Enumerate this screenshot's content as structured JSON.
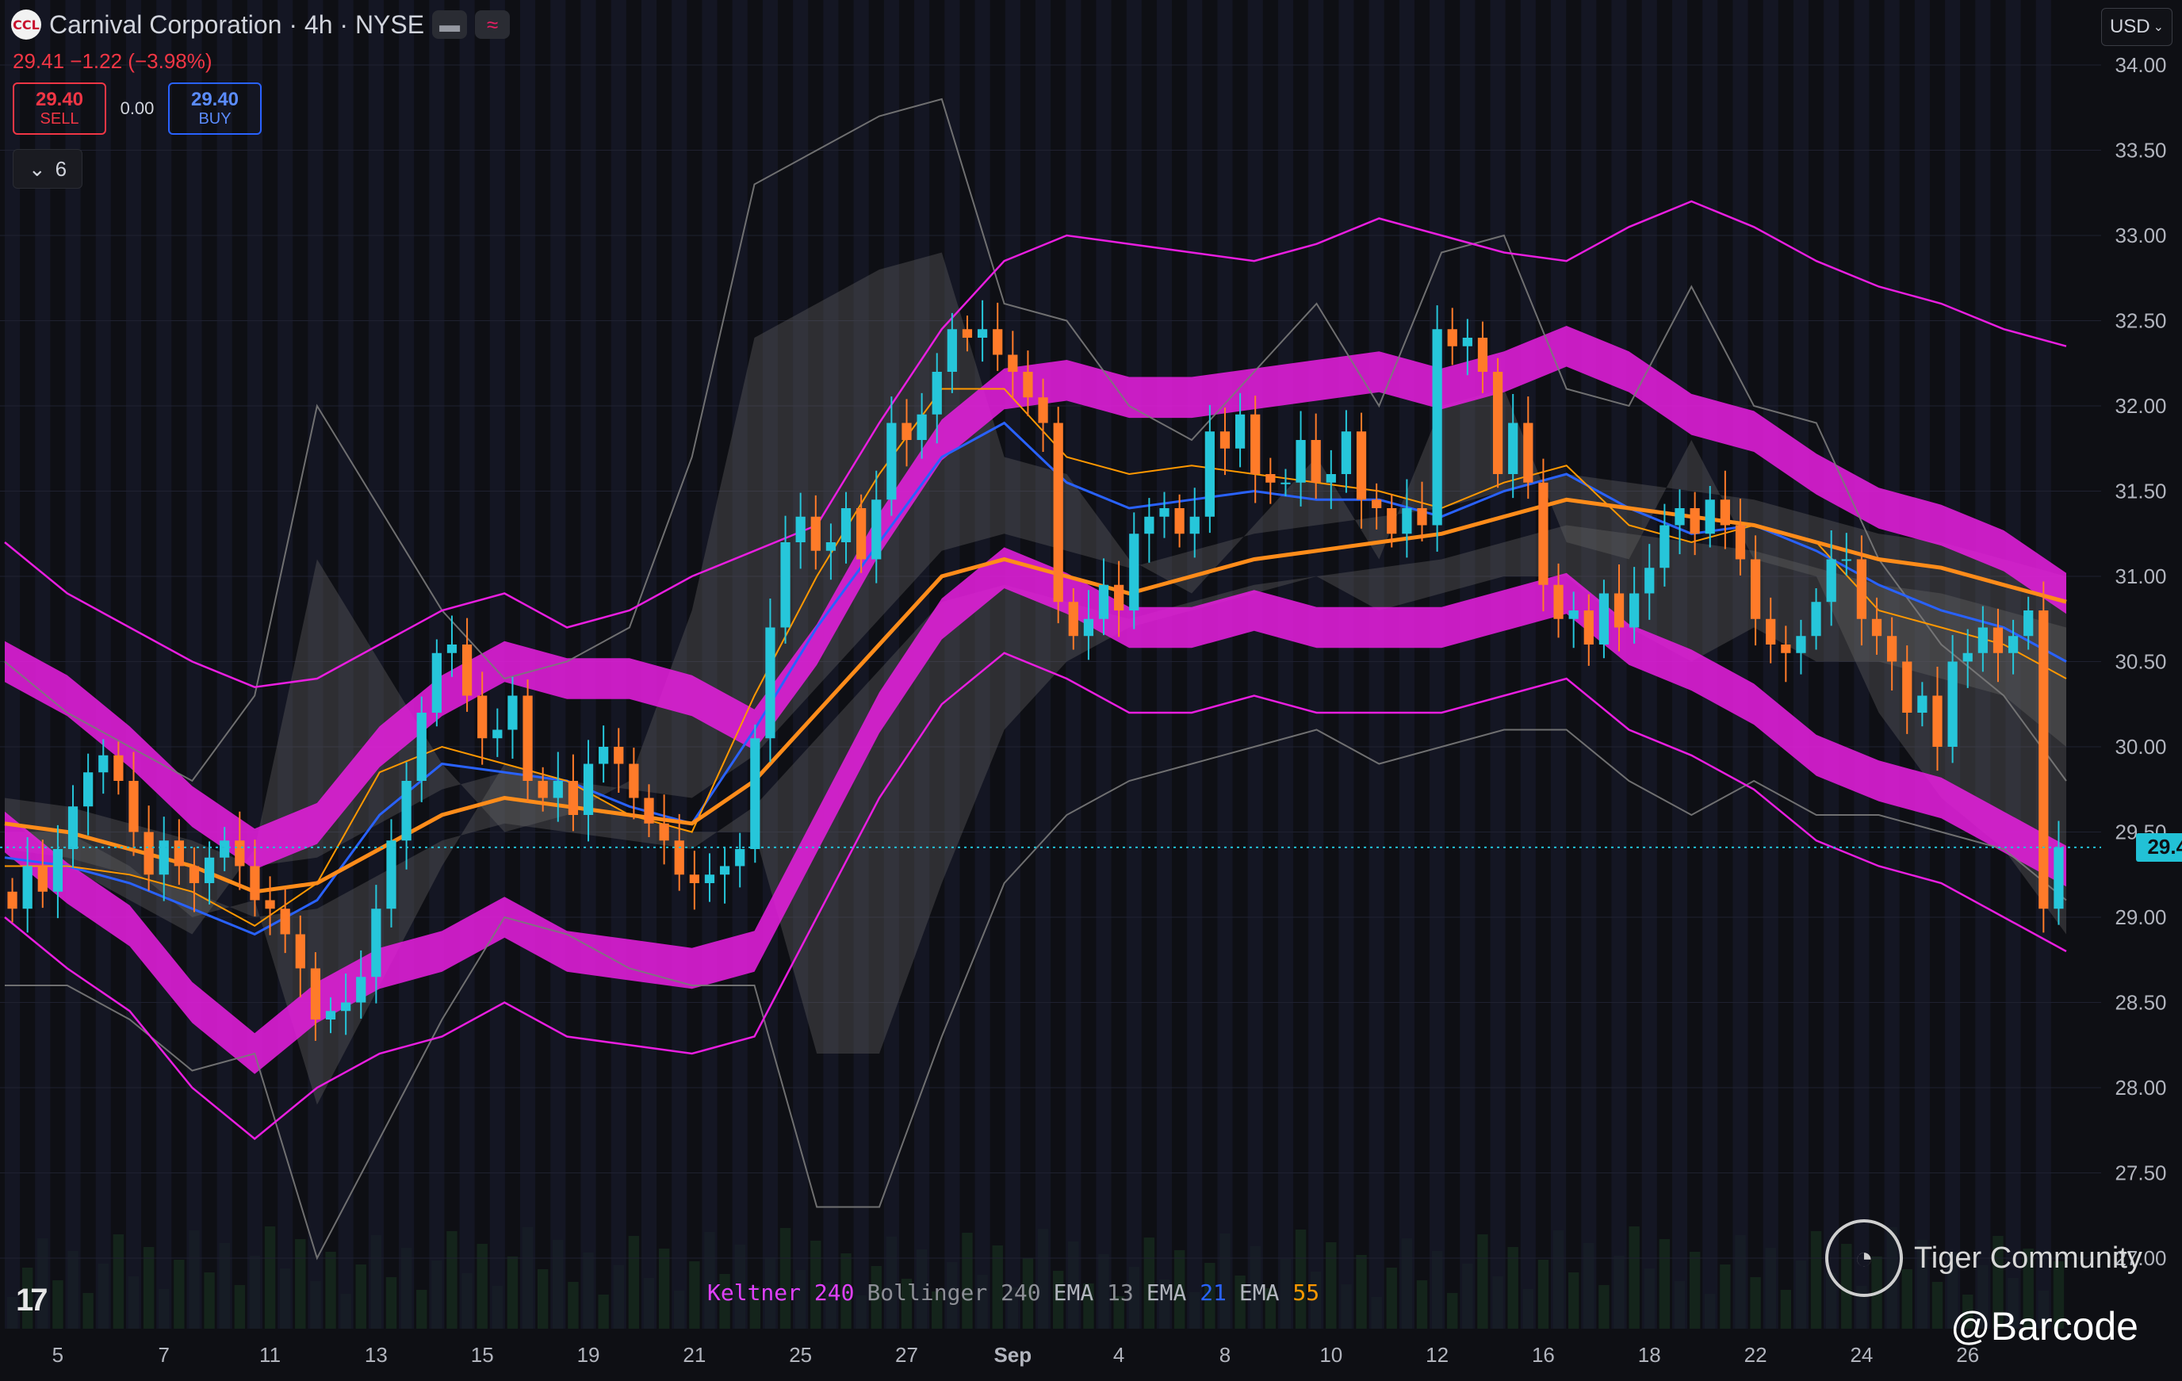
{
  "header": {
    "logo_text": "CCL",
    "title": "Carnival Corporation · 4h · NYSE",
    "minus_icon": "minus-icon",
    "wave_icon": "wave-icon"
  },
  "quote": {
    "text": "29.41 −1.22 (−3.98%)"
  },
  "trade": {
    "sell_price": "29.40",
    "sell_label": "SELL",
    "spread": "0.00",
    "buy_price": "29.40",
    "buy_label": "BUY"
  },
  "collapse": {
    "icon": "chevron-down-icon",
    "count": "6"
  },
  "currency": {
    "label": "USD"
  },
  "last_price": "29.41",
  "legend": [
    {
      "name": "Keltner",
      "value": "240",
      "name_color": "#e040fb",
      "value_color": "#e040fb"
    },
    {
      "name": "Bollinger",
      "value": "240",
      "name_color": "#8d8f96",
      "value_color": "#8d8f96"
    },
    {
      "name": "EMA",
      "value": "13",
      "name_color": "#b2b5be",
      "value_color": "#8d8f96"
    },
    {
      "name": "EMA",
      "value": "21",
      "name_color": "#b2b5be",
      "value_color": "#2962ff"
    },
    {
      "name": "EMA",
      "value": "55",
      "name_color": "#b2b5be",
      "value_color": "#ff9800"
    }
  ],
  "watermark": {
    "logo": "tiger-logo-icon",
    "text": "Tiger Community",
    "handle": "@Barcode"
  },
  "colors": {
    "up": "#26c6da",
    "down": "#ff7b29",
    "keltner": "#e91ee0",
    "bollinger": "#7a7a7a",
    "ema13": "#ff9800",
    "ema21": "#2962ff",
    "ema55": "#ff8c1a"
  },
  "chart_data": {
    "type": "candlestick",
    "title": "Carnival Corporation · 4h · NYSE",
    "xlabel": "",
    "ylabel": "",
    "ylim": [
      26.75,
      34.25
    ],
    "y_ticks": [
      "34.00",
      "33.50",
      "33.00",
      "32.50",
      "32.00",
      "31.50",
      "31.00",
      "30.50",
      "30.00",
      "29.50",
      "29.00",
      "28.50",
      "28.00",
      "27.50",
      "27.00"
    ],
    "x_labels": [
      {
        "label": "5",
        "idx": 3
      },
      {
        "label": "7",
        "idx": 10
      },
      {
        "label": "11",
        "idx": 17
      },
      {
        "label": "13",
        "idx": 24
      },
      {
        "label": "15",
        "idx": 31
      },
      {
        "label": "19",
        "idx": 38
      },
      {
        "label": "21",
        "idx": 45
      },
      {
        "label": "25",
        "idx": 52
      },
      {
        "label": "27",
        "idx": 59
      },
      {
        "label": "Sep",
        "idx": 66
      },
      {
        "label": "4",
        "idx": 73
      },
      {
        "label": "8",
        "idx": 80
      },
      {
        "label": "10",
        "idx": 87
      },
      {
        "label": "12",
        "idx": 94
      },
      {
        "label": "16",
        "idx": 101
      },
      {
        "label": "18",
        "idx": 108
      },
      {
        "label": "22",
        "idx": 115
      },
      {
        "label": "24",
        "idx": 122
      },
      {
        "label": "26",
        "idx": 129
      }
    ],
    "grid": true,
    "close": [
      29.05,
      29.3,
      29.15,
      29.4,
      29.65,
      29.85,
      29.95,
      29.8,
      29.5,
      29.25,
      29.45,
      29.3,
      29.2,
      29.35,
      29.45,
      29.3,
      29.1,
      29.05,
      28.9,
      28.7,
      28.4,
      28.45,
      28.5,
      28.65,
      29.05,
      29.45,
      29.8,
      30.2,
      30.55,
      30.6,
      30.3,
      30.05,
      30.1,
      30.3,
      29.8,
      29.7,
      29.8,
      29.6,
      29.9,
      30.0,
      29.9,
      29.7,
      29.55,
      29.45,
      29.25,
      29.2,
      29.25,
      29.3,
      29.4,
      30.05,
      30.7,
      31.2,
      31.35,
      31.15,
      31.2,
      31.4,
      31.1,
      31.45,
      31.9,
      31.8,
      31.95,
      32.2,
      32.45,
      32.4,
      32.45,
      32.3,
      32.2,
      32.05,
      31.9,
      30.85,
      30.65,
      30.75,
      30.95,
      30.8,
      31.25,
      31.35,
      31.4,
      31.25,
      31.35,
      31.85,
      31.75,
      31.95,
      31.6,
      31.55,
      31.55,
      31.8,
      31.55,
      31.6,
      31.85,
      31.45,
      31.4,
      31.25,
      31.4,
      31.3,
      32.45,
      32.35,
      32.4,
      32.2,
      31.6,
      31.9,
      31.55,
      30.95,
      30.75,
      30.8,
      30.6,
      30.9,
      30.7,
      30.9,
      31.05,
      31.3,
      31.4,
      31.25,
      31.45,
      31.3,
      31.1,
      30.75,
      30.6,
      30.55,
      30.65,
      30.85,
      31.1,
      31.1,
      30.75,
      30.65,
      30.5,
      30.2,
      30.3,
      30.0,
      30.5,
      30.55,
      30.7,
      30.55,
      30.65,
      30.8,
      29.05,
      29.41
    ],
    "keltner_upper": [
      31.2,
      30.9,
      30.7,
      30.5,
      30.35,
      30.4,
      30.6,
      30.8,
      30.9,
      30.7,
      30.8,
      31.0,
      31.15,
      31.3,
      31.9,
      32.45,
      32.85,
      33.0,
      32.95,
      32.9,
      32.85,
      32.95,
      33.1,
      33.0,
      32.9,
      32.85,
      33.05,
      33.2,
      33.05,
      32.85,
      32.7,
      32.6,
      32.45,
      32.35
    ],
    "keltner_mid": [
      30.5,
      30.3,
      30.0,
      29.65,
      29.4,
      29.55,
      30.0,
      30.3,
      30.5,
      30.4,
      30.4,
      30.3,
      30.1,
      30.6,
      31.25,
      31.8,
      32.1,
      32.15,
      32.05,
      32.05,
      32.1,
      32.15,
      32.2,
      32.1,
      32.2,
      32.35,
      32.2,
      31.95,
      31.85,
      31.6,
      31.4,
      31.3,
      31.15,
      30.9
    ],
    "keltner_lower": [
      29.0,
      28.7,
      28.45,
      28.0,
      27.7,
      28.0,
      28.2,
      28.3,
      28.5,
      28.3,
      28.25,
      28.2,
      28.3,
      29.0,
      29.7,
      30.25,
      30.55,
      30.4,
      30.2,
      30.2,
      30.3,
      30.2,
      30.2,
      30.2,
      30.3,
      30.4,
      30.1,
      29.95,
      29.75,
      29.45,
      29.3,
      29.2,
      29.0,
      28.8
    ],
    "bb_upper": [
      30.5,
      30.2,
      30.0,
      29.8,
      30.3,
      32.0,
      31.4,
      30.8,
      30.4,
      30.5,
      30.7,
      31.7,
      33.3,
      33.5,
      33.7,
      33.8,
      32.6,
      32.5,
      32.0,
      31.8,
      32.2,
      32.6,
      32.0,
      32.9,
      33.0,
      32.1,
      32.0,
      32.7,
      32.0,
      31.9,
      31.1,
      30.6,
      30.3,
      29.8
    ],
    "bb_lower": [
      28.6,
      28.6,
      28.4,
      28.1,
      28.2,
      27.0,
      27.7,
      28.4,
      29.0,
      28.9,
      28.7,
      28.6,
      28.6,
      27.3,
      27.3,
      28.3,
      29.2,
      29.6,
      29.8,
      29.9,
      30.0,
      30.1,
      29.9,
      30.0,
      30.1,
      30.1,
      29.8,
      29.6,
      29.8,
      29.6,
      29.6,
      29.5,
      29.4,
      29.1
    ],
    "ema13": [
      29.3,
      29.3,
      29.25,
      29.15,
      28.95,
      29.2,
      29.85,
      30.0,
      29.9,
      29.8,
      29.6,
      29.5,
      30.3,
      31.0,
      31.6,
      32.1,
      32.1,
      31.7,
      31.6,
      31.65,
      31.6,
      31.55,
      31.5,
      31.4,
      31.55,
      31.65,
      31.3,
      31.2,
      31.3,
      31.2,
      30.8,
      30.7,
      30.6,
      30.4
    ],
    "ema21": [
      29.35,
      29.3,
      29.2,
      29.05,
      28.9,
      29.1,
      29.6,
      29.9,
      29.85,
      29.8,
      29.65,
      29.55,
      30.1,
      30.7,
      31.2,
      31.7,
      31.9,
      31.55,
      31.4,
      31.45,
      31.5,
      31.45,
      31.45,
      31.35,
      31.5,
      31.6,
      31.4,
      31.25,
      31.3,
      31.15,
      30.95,
      30.8,
      30.7,
      30.5
    ],
    "ema55": [
      29.55,
      29.5,
      29.4,
      29.3,
      29.15,
      29.2,
      29.4,
      29.6,
      29.7,
      29.65,
      29.6,
      29.55,
      29.8,
      30.2,
      30.6,
      31.0,
      31.1,
      31.0,
      30.9,
      31.0,
      31.1,
      31.15,
      31.2,
      31.25,
      31.35,
      31.45,
      31.4,
      31.35,
      31.3,
      31.2,
      31.1,
      31.05,
      30.95,
      30.85
    ]
  }
}
